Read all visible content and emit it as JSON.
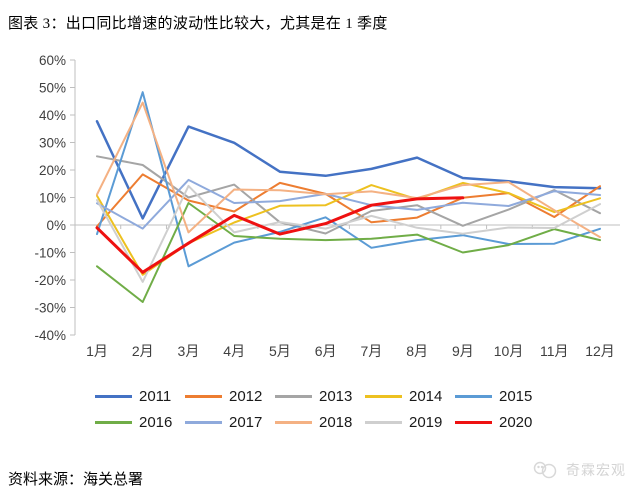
{
  "title": "图表 3：出口同比增速的波动性比较大，尤其是在 1 季度",
  "source": "资料来源：海关总署",
  "logo": {
    "text": "奇霖宏观",
    "icon": "panda-face-icon"
  },
  "chart_data": {
    "type": "line",
    "x": [
      "1月",
      "2月",
      "3月",
      "4月",
      "5月",
      "6月",
      "7月",
      "8月",
      "9月",
      "10月",
      "11月",
      "12月"
    ],
    "y_ticks": [
      "60%",
      "50%",
      "40%",
      "30%",
      "20%",
      "10%",
      "0%",
      "-10%",
      "-20%",
      "-30%",
      "-40%"
    ],
    "ylim": [
      -40,
      60
    ],
    "y_unit": "%",
    "grid": "zero-axis-only",
    "legend_position": "bottom",
    "axis_color": "#BFBFBF",
    "series": [
      {
        "name": "2011",
        "color": "#4472C4",
        "width": 2.5,
        "values": [
          37.7,
          2.4,
          35.8,
          29.9,
          19.4,
          17.9,
          20.4,
          24.5,
          17.1,
          15.9,
          13.8,
          13.4
        ]
      },
      {
        "name": "2012",
        "color": "#ED7D31",
        "width": 2,
        "values": [
          -0.5,
          18.4,
          8.9,
          4.9,
          15.3,
          11.3,
          1.0,
          2.7,
          9.9,
          11.6,
          2.9,
          14.1
        ]
      },
      {
        "name": "2013",
        "color": "#A5A5A5",
        "width": 2,
        "values": [
          25.0,
          21.8,
          10.0,
          14.7,
          1.0,
          -3.1,
          5.1,
          7.2,
          -0.3,
          5.6,
          12.7,
          4.3
        ]
      },
      {
        "name": "2014",
        "color": "#EDC120",
        "width": 2,
        "values": [
          10.6,
          -18.1,
          -6.6,
          0.9,
          7.0,
          7.2,
          14.5,
          9.4,
          15.3,
          11.6,
          4.7,
          9.7
        ]
      },
      {
        "name": "2015",
        "color": "#5B9BD5",
        "width": 2,
        "values": [
          -3.3,
          48.3,
          -15.0,
          -6.4,
          -2.5,
          2.8,
          -8.3,
          -5.5,
          -3.7,
          -6.9,
          -6.8,
          -1.4
        ]
      },
      {
        "name": "2016",
        "color": "#70AD47",
        "width": 2,
        "values": [
          -15.0,
          -28.0,
          8.0,
          -4.0,
          -5.0,
          -5.5,
          -5.0,
          -3.5,
          -10.0,
          -7.3,
          -1.5,
          -5.5
        ]
      },
      {
        "name": "2017",
        "color": "#8FAADC",
        "width": 2,
        "values": [
          7.9,
          -1.3,
          16.4,
          8.0,
          8.7,
          11.3,
          7.2,
          5.5,
          8.1,
          6.9,
          12.3,
          10.9
        ]
      },
      {
        "name": "2018",
        "color": "#F4B183",
        "width": 2,
        "values": [
          11.1,
          44.5,
          -2.7,
          12.9,
          12.6,
          11.2,
          12.2,
          9.8,
          14.5,
          15.6,
          5.4,
          -4.4
        ]
      },
      {
        "name": "2019",
        "color": "#CFCFCF",
        "width": 2,
        "values": [
          9.1,
          -20.7,
          14.2,
          -2.7,
          1.1,
          -1.3,
          3.3,
          -1.0,
          -3.2,
          -0.9,
          -1.1,
          7.6
        ]
      },
      {
        "name": "2020",
        "color": "#EE1111",
        "width": 3,
        "values": [
          -1.0,
          -17.2,
          -6.6,
          3.5,
          -3.3,
          0.5,
          7.2,
          9.5,
          9.9,
          null,
          null,
          null
        ]
      }
    ]
  }
}
